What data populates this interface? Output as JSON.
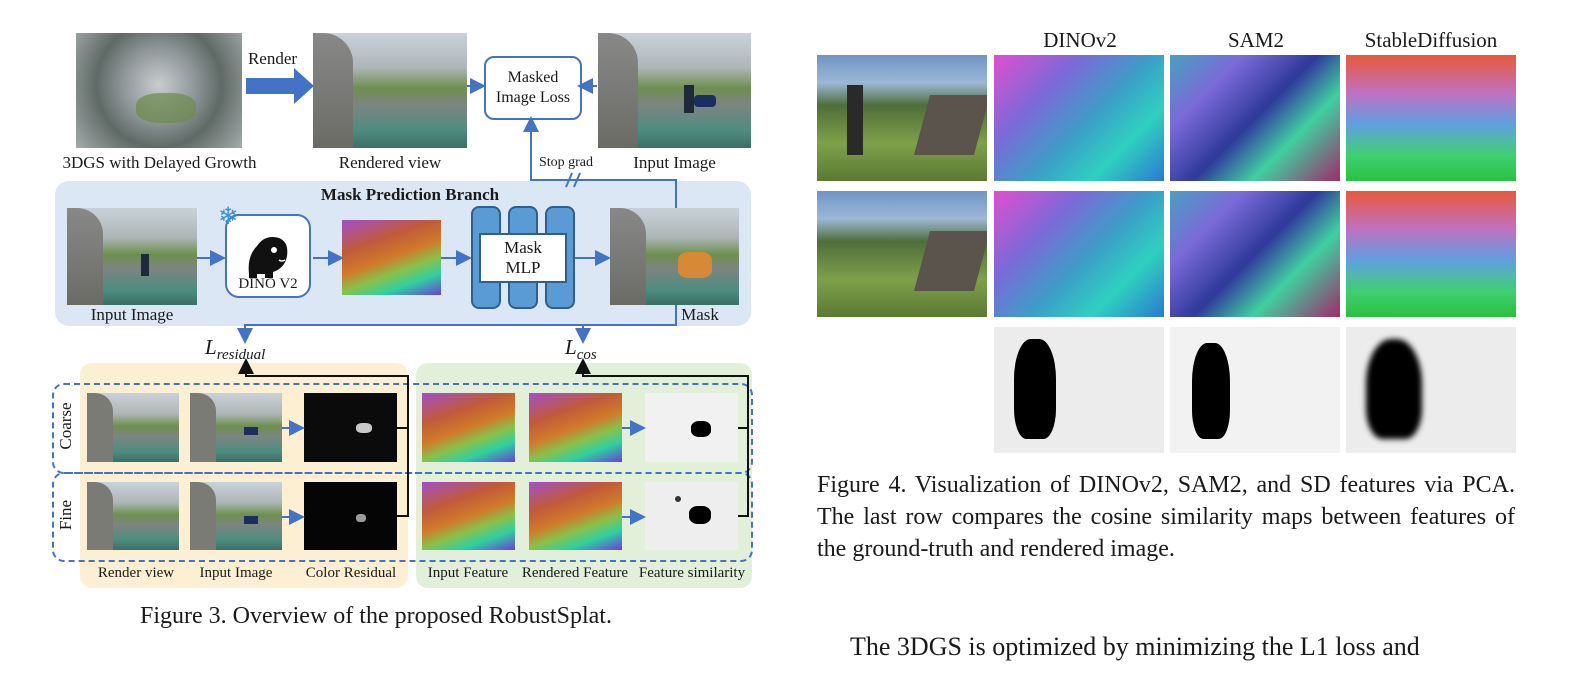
{
  "figure3": {
    "top": {
      "src_label": "3DGS with Delayed Growth",
      "render_arrow_label": "Render",
      "rendered_label": "Rendered view",
      "loss_box": "Masked Image Loss",
      "input_label": "Input Image",
      "stop_grad": "Stop grad"
    },
    "branch": {
      "title": "Mask Prediction Branch",
      "input_label": "Input Image",
      "dino_label": "DINO V2",
      "mlp_label": "Mask MLP",
      "mask_label": "Mask"
    },
    "loss_residual": "L",
    "loss_residual_sub": "residual",
    "loss_cos": "L",
    "loss_cos_sub": "cos",
    "rows": [
      "Coarse",
      "Fine"
    ],
    "bottom_labels": [
      "Render view",
      "Input Image",
      "Color Residual",
      "Input Feature",
      "Rendered Feature",
      "Feature similarity"
    ],
    "caption": "Figure 3. Overview of the proposed RobustSplat."
  },
  "figure4": {
    "columns": [
      "DINOv2",
      "SAM2",
      "StableDiffusion"
    ],
    "caption": "Figure 4.  Visualization of DINOv2, SAM2, and SD features via PCA. The last row compares the cosine similarity maps between features of the ground-truth and rendered image."
  },
  "body_text": "The 3DGS is optimized by minimizing the L1 loss and",
  "colors": {
    "accent_blue": "#4472c4",
    "branch_bg": "#dce7f5",
    "yellow_bg": "#fdf0d2",
    "green_bg": "#e2efd9"
  }
}
